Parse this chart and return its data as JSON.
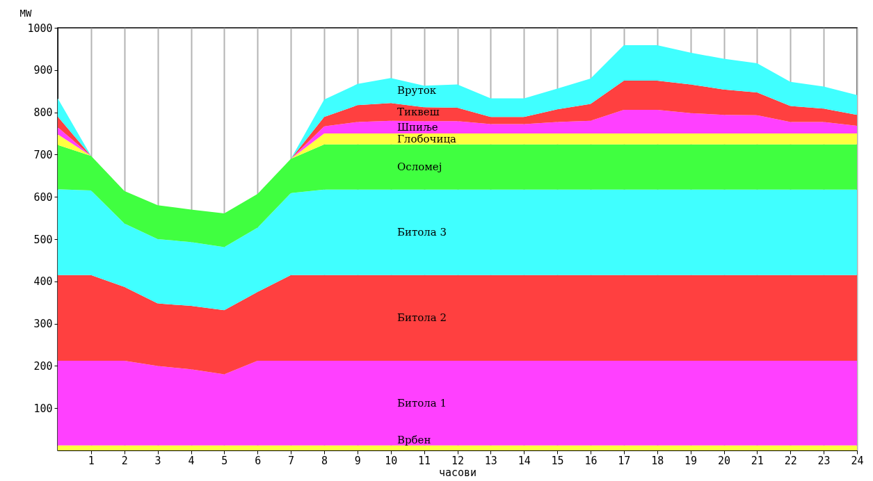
{
  "chart_data": {
    "type": "area",
    "stacked": true,
    "xlabel": "часови",
    "ylabel": "MW",
    "xlim": [
      0,
      24
    ],
    "ylim": [
      0,
      1000
    ],
    "xticks": [
      1,
      2,
      3,
      4,
      5,
      6,
      7,
      8,
      9,
      10,
      11,
      12,
      13,
      14,
      15,
      16,
      17,
      18,
      19,
      20,
      21,
      22,
      23,
      24
    ],
    "yticks": [
      100,
      200,
      300,
      400,
      500,
      600,
      700,
      800,
      900,
      1000
    ],
    "grid": "x",
    "x": [
      0,
      1,
      2,
      3,
      4,
      5,
      6,
      7,
      8,
      9,
      10,
      11,
      12,
      13,
      14,
      15,
      16,
      17,
      18,
      19,
      20,
      21,
      22,
      23,
      24
    ],
    "series": [
      {
        "name": "Врбен",
        "color": "#ffff40",
        "values": [
          12,
          12,
          12,
          12,
          12,
          12,
          12,
          12,
          12,
          12,
          12,
          12,
          12,
          12,
          12,
          12,
          12,
          12,
          12,
          12,
          12,
          12,
          12,
          12,
          12
        ]
      },
      {
        "name": "Битола 1",
        "color": "#ff40ff",
        "values": [
          200,
          200,
          200,
          188,
          180,
          168,
          200,
          200,
          200,
          200,
          200,
          200,
          200,
          200,
          200,
          200,
          200,
          200,
          200,
          200,
          200,
          200,
          200,
          200,
          200
        ]
      },
      {
        "name": "Битола 2",
        "color": "#ff4040",
        "values": [
          203,
          203,
          175,
          148,
          150,
          152,
          163,
          203,
          203,
          203,
          203,
          203,
          203,
          203,
          203,
          203,
          203,
          203,
          203,
          203,
          203,
          203,
          203,
          203,
          203
        ]
      },
      {
        "name": "Битола 3",
        "color": "#40ffff",
        "values": [
          203,
          200,
          150,
          152,
          151,
          149,
          152,
          194,
          202,
          202,
          202,
          202,
          202,
          202,
          202,
          202,
          202,
          202,
          202,
          202,
          202,
          202,
          202,
          202,
          202
        ]
      },
      {
        "name": "Осломеј",
        "color": "#40ff40",
        "values": [
          105,
          82,
          77,
          80,
          77,
          80,
          80,
          81,
          107,
          107,
          107,
          107,
          107,
          107,
          107,
          107,
          107,
          107,
          107,
          107,
          107,
          107,
          107,
          107,
          107
        ]
      },
      {
        "name": "Глобочица",
        "color": "#ffff40",
        "values": [
          25,
          0,
          0,
          0,
          0,
          0,
          0,
          0,
          26,
          26,
          26,
          26,
          26,
          26,
          26,
          26,
          26,
          26,
          26,
          26,
          26,
          26,
          26,
          26,
          26
        ]
      },
      {
        "name": "Шпиље",
        "color": "#ff40ff",
        "values": [
          17,
          0,
          0,
          0,
          0,
          0,
          0,
          0,
          17,
          27,
          30,
          29,
          29,
          22,
          22,
          27,
          30,
          56,
          56,
          48,
          44,
          43,
          27,
          27,
          18
        ]
      },
      {
        "name": "Тиквеш",
        "color": "#ff4040",
        "values": [
          25,
          0,
          0,
          0,
          0,
          0,
          0,
          0,
          22,
          40,
          42,
          33,
          32,
          17,
          17,
          30,
          40,
          69,
          69,
          68,
          60,
          54,
          38,
          32,
          26
        ]
      },
      {
        "name": "Вруток",
        "color": "#40ffff",
        "values": [
          43,
          0,
          0,
          0,
          0,
          0,
          0,
          0,
          41,
          50,
          59,
          51,
          55,
          44,
          44,
          49,
          60,
          84,
          84,
          75,
          73,
          69,
          57,
          52,
          47
        ]
      }
    ]
  }
}
